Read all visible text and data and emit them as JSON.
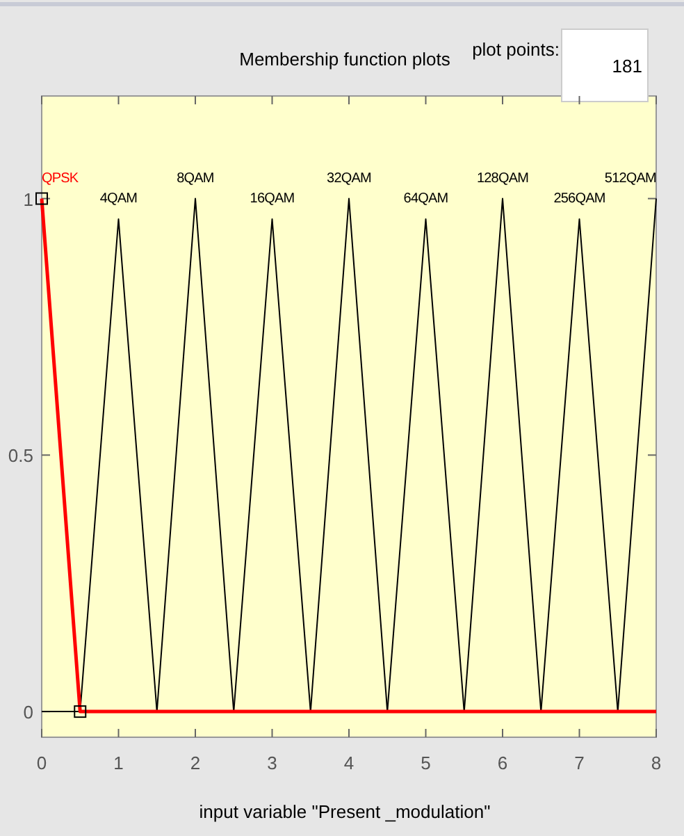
{
  "chart_data": {
    "type": "line",
    "title": "Membership function plots",
    "xlabel": "input variable \"Present _modulation\"",
    "annotations": [
      "plot points:",
      "181"
    ],
    "xlim": [
      0,
      8
    ],
    "ylim": [
      -0.05,
      1.2
    ],
    "xticks": [
      0,
      1,
      2,
      3,
      4,
      5,
      6,
      7,
      8
    ],
    "yticks": [
      0,
      0.5,
      1
    ],
    "grid": false,
    "line_style": "solid",
    "series": [
      {
        "name": "4QAM",
        "color": "#000000",
        "x": [
          0,
          0.5,
          1,
          1.5,
          8
        ],
        "values": [
          0,
          0,
          0.96,
          0,
          0
        ]
      },
      {
        "name": "8QAM",
        "color": "#000000",
        "x": [
          0,
          1.5,
          2,
          2.5,
          8
        ],
        "values": [
          0,
          0,
          1,
          0,
          0
        ]
      },
      {
        "name": "16QAM",
        "color": "#000000",
        "x": [
          0,
          2.5,
          3,
          3.5,
          8
        ],
        "values": [
          0,
          0,
          0.96,
          0,
          0
        ]
      },
      {
        "name": "32QAM",
        "color": "#000000",
        "x": [
          0,
          3.5,
          4,
          4.5,
          8
        ],
        "values": [
          0,
          0,
          1,
          0,
          0
        ]
      },
      {
        "name": "64QAM",
        "color": "#000000",
        "x": [
          0,
          4.5,
          5,
          5.5,
          8
        ],
        "values": [
          0,
          0,
          0.96,
          0,
          0
        ]
      },
      {
        "name": "128QAM",
        "color": "#000000",
        "x": [
          0,
          5.5,
          6,
          6.5,
          8
        ],
        "values": [
          0,
          0,
          1,
          0,
          0
        ]
      },
      {
        "name": "256QAM",
        "color": "#000000",
        "x": [
          0,
          6.5,
          7,
          7.5,
          8
        ],
        "values": [
          0,
          0,
          0.96,
          0,
          0
        ]
      },
      {
        "name": "512QAM",
        "color": "#000000",
        "x": [
          0,
          7.5,
          8
        ],
        "values": [
          0,
          0,
          1
        ]
      },
      {
        "name": "QPSK",
        "color": "#ff0000",
        "x": [
          0,
          0.5,
          8
        ],
        "values": [
          1,
          0,
          0
        ]
      }
    ]
  }
}
